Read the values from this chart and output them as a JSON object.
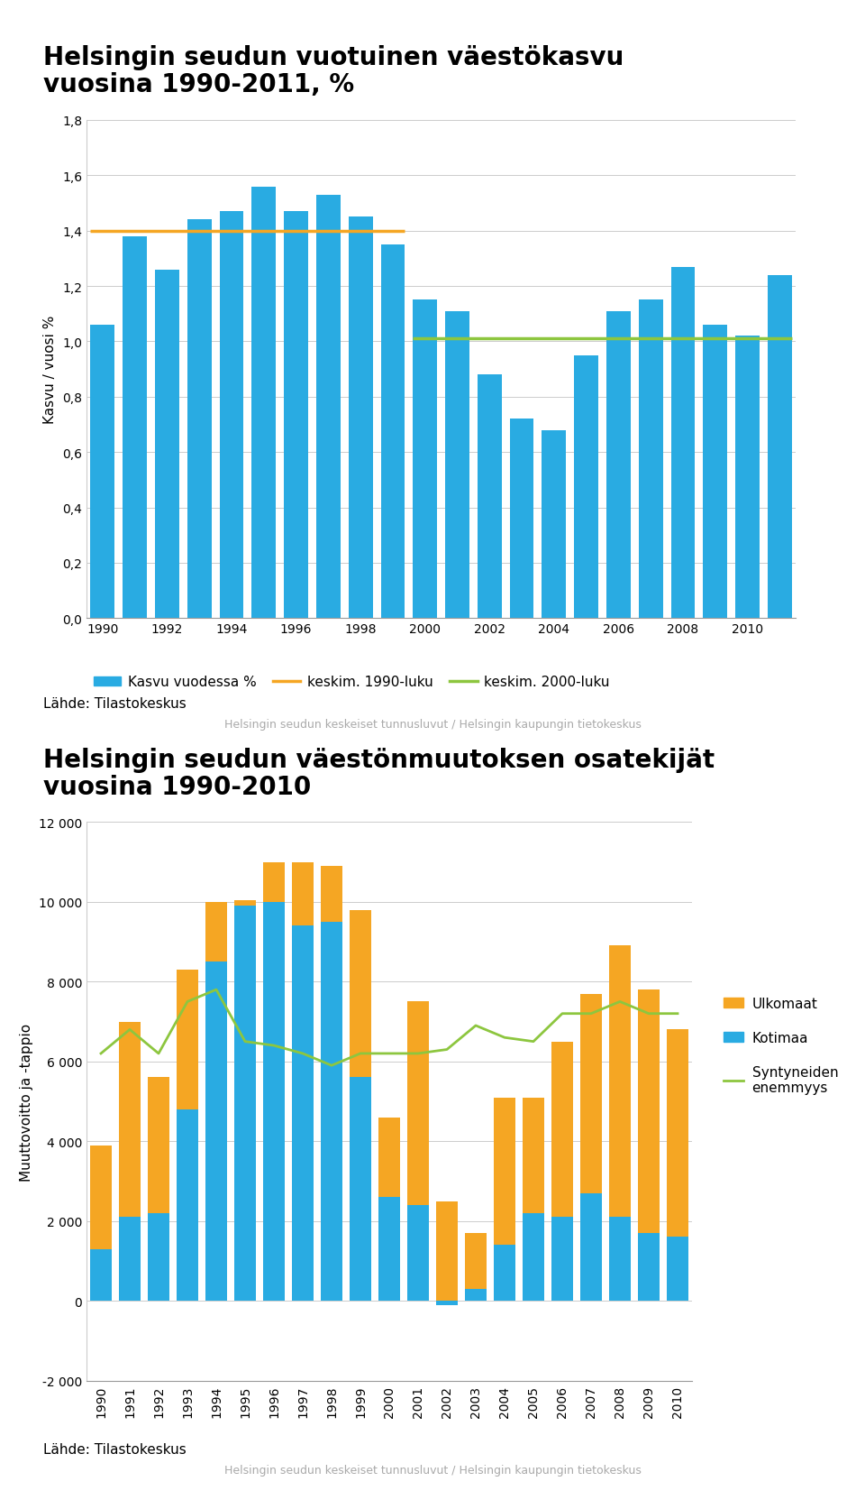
{
  "chart1": {
    "title_line1": "Helsingin seudun vuotuinen väestökasvu",
    "title_line2": "vuosina 1990-2011, %",
    "ylabel": "Kasvu / vuosi %",
    "years": [
      1990,
      1991,
      1992,
      1993,
      1994,
      1995,
      1996,
      1997,
      1998,
      1999,
      2000,
      2001,
      2002,
      2003,
      2004,
      2005,
      2006,
      2007,
      2008,
      2009,
      2010,
      2011
    ],
    "values": [
      1.06,
      1.38,
      1.26,
      1.44,
      1.47,
      1.56,
      1.47,
      1.53,
      1.45,
      1.35,
      1.15,
      1.11,
      0.88,
      0.72,
      0.68,
      0.95,
      1.11,
      1.15,
      1.27,
      1.06,
      1.02,
      1.24
    ],
    "bar_color": "#29ABE2",
    "avg_1990s_value": 1.4,
    "avg_2000s_value": 1.01,
    "avg_1990s_color": "#F5A623",
    "avg_2000s_color": "#8DC63F",
    "ylim": [
      0.0,
      1.8
    ],
    "yticks": [
      0.0,
      0.2,
      0.4,
      0.6,
      0.8,
      1.0,
      1.2,
      1.4,
      1.6,
      1.8
    ],
    "xticks": [
      1990,
      1992,
      1994,
      1996,
      1998,
      2000,
      2002,
      2004,
      2006,
      2008,
      2010
    ],
    "legend_bar": "Kasvu vuodessa %",
    "legend_line1": "keskim. 1990-luku",
    "legend_line2": "keskim. 2000-luku",
    "source1": "Lähde: Tilastokeskus",
    "source2": "Helsingin seudun keskeiset tunnusluvut / Helsingin kaupungin tietokeskus"
  },
  "chart2": {
    "title_line1": "Helsingin seudun väestönmuutoksen osatekijät",
    "title_line2": "vuosina 1990-2010",
    "ylabel": "Muuttovoitto ja -tappio",
    "years": [
      1990,
      1991,
      1992,
      1993,
      1994,
      1995,
      1996,
      1997,
      1998,
      1999,
      2000,
      2001,
      2002,
      2003,
      2004,
      2005,
      2006,
      2007,
      2008,
      2009,
      2010
    ],
    "kotimaa": [
      1300,
      2100,
      2200,
      4800,
      8500,
      9900,
      10000,
      9400,
      9500,
      5600,
      2600,
      2400,
      -100,
      300,
      1400,
      2200,
      2100,
      2700,
      2100,
      1700,
      1600
    ],
    "ulkomaat": [
      2600,
      4900,
      3400,
      3500,
      1500,
      150,
      1000,
      1600,
      1400,
      4200,
      2000,
      5100,
      2500,
      1400,
      3700,
      2900,
      4400,
      5000,
      6800,
      6100,
      5200
    ],
    "syntyneiden_enemmyys": [
      6200,
      6800,
      6200,
      7500,
      7800,
      6500,
      6400,
      6200,
      5900,
      6200,
      6200,
      6200,
      6300,
      6900,
      6600,
      6500,
      7200,
      7200,
      7500,
      7200,
      7200
    ],
    "kotimaa_color": "#29ABE2",
    "ulkomaat_color": "#F5A623",
    "syntyneide_color": "#8DC63F",
    "ylim": [
      -2000,
      12000
    ],
    "yticks": [
      -2000,
      0,
      2000,
      4000,
      6000,
      8000,
      10000,
      12000
    ],
    "legend_ulkomaat": "Ulkomaat",
    "legend_kotimaa": "Kotimaa",
    "legend_synt": "Syntyneiden\nenemmyys",
    "source1": "Lähde: Tilastokeskus",
    "source2": "Helsingin seudun keskeiset tunnusluvut / Helsingin kaupungin tietokeskus"
  },
  "bg_color": "#FFFFFF",
  "title_fontsize": 20,
  "axis_fontsize": 11,
  "tick_fontsize": 10,
  "source_fontsize": 9,
  "source_color": "#AAAAAA"
}
